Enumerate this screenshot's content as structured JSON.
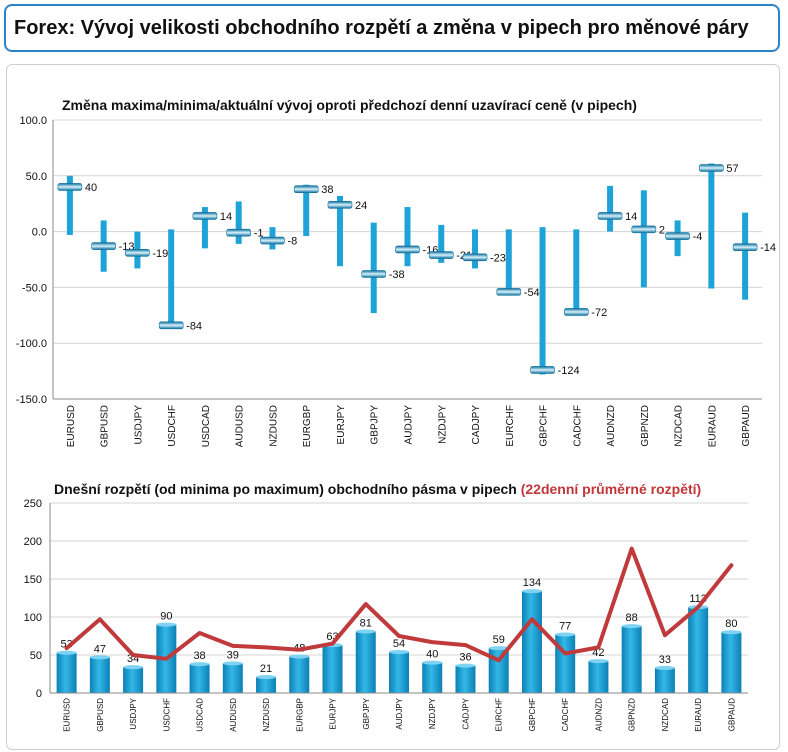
{
  "header": {
    "title": "Forex: Vývoj velikosti obchodního rozpětí a změna v pipech pro měnové páry"
  },
  "chart_data": [
    {
      "type": "range",
      "title": "Změna maxima/minima/aktuální vývoj oproti předchozí denní uzavírací ceně (v pipech)",
      "ylim": [
        -150,
        100
      ],
      "yticks": [
        "100.0",
        "50.0",
        "0.0",
        "-50.0",
        "-100.0",
        "-150.0"
      ],
      "grid": true,
      "categories": [
        "EURUSD",
        "GBPUSD",
        "USDJPY",
        "USDCHF",
        "USDCAD",
        "AUDUSD",
        "NZDUSD",
        "EURGBP",
        "EURJPY",
        "GBPJPY",
        "AUDJPY",
        "NZDJPY",
        "CADJPY",
        "EURCHF",
        "GBPCHF",
        "CADCHF",
        "AUDNZD",
        "GBPNZD",
        "NZDCAD",
        "EURAUD",
        "GBPAUD"
      ],
      "high": [
        50,
        10,
        0,
        2,
        22,
        27,
        4,
        42,
        32,
        8,
        22,
        6,
        2,
        2,
        4,
        2,
        41,
        37,
        10,
        61,
        17
      ],
      "low": [
        -3,
        -36,
        -33,
        -86,
        -15,
        -11,
        -16,
        -4,
        -31,
        -73,
        -31,
        -28,
        -33,
        -56,
        -128,
        -73,
        0,
        -50,
        -22,
        -51,
        -61
      ],
      "current": [
        40,
        -13,
        -19,
        -84,
        14,
        -1,
        -8,
        38,
        24,
        -38,
        -16,
        -21,
        -23,
        -54,
        -124,
        -72,
        14,
        2,
        -4,
        57,
        -14
      ],
      "labels": [
        "40",
        "-13",
        "-19",
        "-84",
        "14",
        "-1",
        "-8",
        "38",
        "24",
        "-38",
        "-16",
        "-21",
        "-23",
        "-54",
        "-124",
        "-72",
        "14",
        "2",
        "-4",
        "57",
        "-14"
      ],
      "colors": {
        "bar": "#1ea3d8",
        "marker": "#1598cc",
        "marker_light": "#bfe7f7",
        "grid": "#d4d4d4",
        "axis": "#888888"
      }
    },
    {
      "type": "bar+line",
      "title": "Dnešní rozpětí (od minima po maximum) obchodního pásma v pipech",
      "title_suffix": "(22denní průměrné rozpětí)",
      "ylim": [
        0,
        250
      ],
      "yticks": [
        "250",
        "200",
        "150",
        "100",
        "50",
        "0"
      ],
      "grid": true,
      "categories": [
        "EURUSD",
        "GBPUSD",
        "USDJPY",
        "USDCHF",
        "USDCAD",
        "AUDUSD",
        "NZDUSD",
        "EURGBP",
        "EURJPY",
        "GBPJPY",
        "AUDJPY",
        "NZDJPY",
        "CADJPY",
        "EURCHF",
        "GBPCHF",
        "CADCHF",
        "AUDNZD",
        "GBPNZD",
        "NZDCAD",
        "EURAUD",
        "GBPAUD"
      ],
      "values": [
        53,
        47,
        34,
        90,
        38,
        39,
        21,
        48,
        63,
        81,
        54,
        40,
        36,
        59,
        134,
        77,
        42,
        88,
        33,
        113,
        80
      ],
      "labels": [
        "53",
        "47",
        "34",
        "90",
        "38",
        "39",
        "21",
        "48",
        "63",
        "81",
        "54",
        "40",
        "36",
        "59",
        "134",
        "77",
        "42",
        "88",
        "33",
        "113",
        "80"
      ],
      "avg": [
        59,
        97,
        50,
        45,
        79,
        62,
        60,
        57,
        65,
        117,
        75,
        67,
        63,
        43,
        97,
        52,
        60,
        190,
        76,
        113,
        168
      ],
      "colors": {
        "bar": "#1ea3d8",
        "bar_dark": "#0c80b4",
        "line": "#c0393b",
        "suffix": "#c0363a",
        "grid": "#d4d4d4",
        "axis": "#888888"
      }
    }
  ]
}
